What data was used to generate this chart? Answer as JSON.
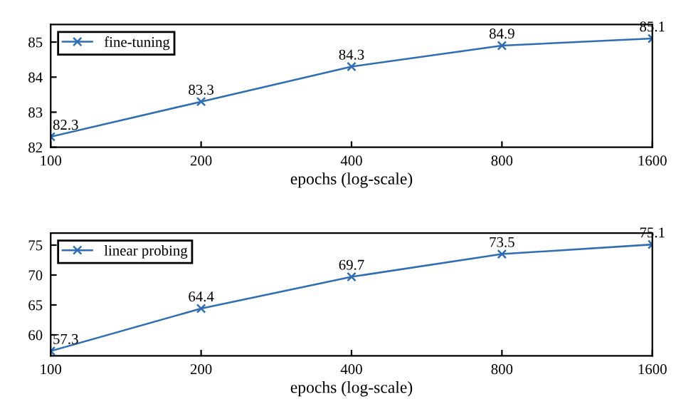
{
  "chart_data": [
    {
      "type": "line",
      "x": [
        100,
        200,
        400,
        800,
        1600
      ],
      "series": [
        {
          "name": "fine-tuning",
          "color": "#2f6eb5",
          "values": [
            82.3,
            83.3,
            84.3,
            84.9,
            85.1
          ]
        }
      ],
      "xlabel": "epochs (log-scale)",
      "log": "x",
      "xlim": [
        100,
        1600
      ],
      "xticks": [
        100,
        200,
        400,
        800,
        1600
      ],
      "ylim": [
        82,
        85.5
      ],
      "yticks": [
        82,
        83,
        84,
        85
      ],
      "marker": "cross",
      "line_style": "solid",
      "legend": "top left",
      "data_labels": true,
      "grid": false
    },
    {
      "type": "line",
      "x": [
        100,
        200,
        400,
        800,
        1600
      ],
      "series": [
        {
          "name": "linear probing",
          "color": "#2f6eb5",
          "values": [
            57.3,
            64.4,
            69.7,
            73.5,
            75.1
          ]
        }
      ],
      "xlabel": "epochs (log-scale)",
      "log": "x",
      "xlim": [
        100,
        1600
      ],
      "xticks": [
        100,
        200,
        400,
        800,
        1600
      ],
      "ylim": [
        56.5,
        77
      ],
      "yticks": [
        60,
        65,
        70,
        75
      ],
      "marker": "cross",
      "line_style": "solid",
      "legend": "top left",
      "data_labels": true,
      "grid": false
    }
  ]
}
